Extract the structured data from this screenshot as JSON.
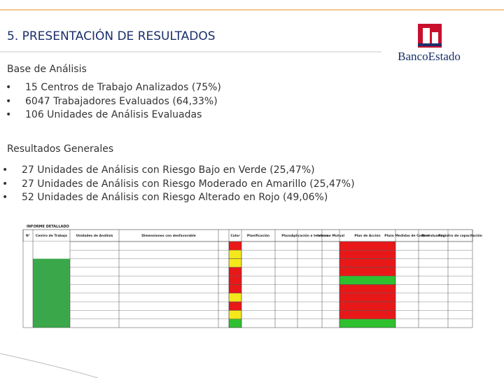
{
  "header": {
    "title": "5. PRESENTACIÓN DE RESULTADOS",
    "brand": "BancoEstado"
  },
  "sections": [
    {
      "heading": "Base de Análisis",
      "bullets": [
        "15 Centros de Trabajo Analizados (75%)",
        "6047 Trabajadores Evaluados (64,33%)",
        "106 Unidades de Análisis Evaluadas"
      ]
    },
    {
      "heading": "Resultados Generales",
      "bullets": [
        "27 Unidades de Análisis con Riesgo Bajo en Verde (25,47%)",
        "27 Unidades de Análisis con Riesgo Moderado en Amarillo (25,47%)",
        "52 Unidades de Análisis con Riesgo Alterado en Rojo (49,06%)"
      ]
    }
  ],
  "table": {
    "caption": "INFORME DETALLADO",
    "headers": [
      "N°",
      "Centro de Trabajo",
      "Unidades de Análisis",
      "Dimensiones con desfavorable",
      "Color",
      "Planificación",
      "Plazo",
      "Aplicación a terceros",
      "Informe Mutual",
      "Plan de Acción",
      "Plazo Medidas de Control",
      "Reevaluación",
      "Registro de capacitación"
    ]
  }
}
